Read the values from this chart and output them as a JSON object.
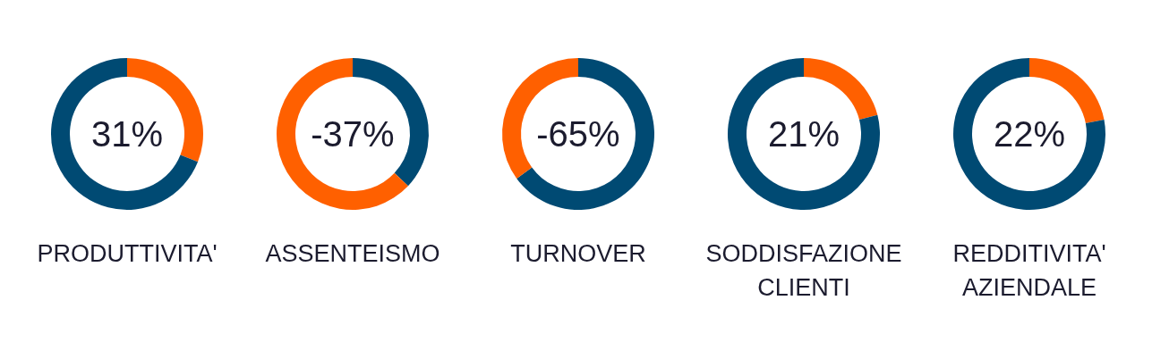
{
  "chart_data": [
    {
      "type": "donut",
      "title": "PRODUTTIVITA'",
      "categories": [
        null,
        null
      ],
      "values": [
        31,
        69
      ],
      "colors": [
        "#ff6000",
        "#004a73"
      ],
      "annotations": [
        "31%"
      ]
    },
    {
      "type": "donut",
      "title": "ASSENTEISMO",
      "categories": [
        null,
        null
      ],
      "values": [
        37,
        63
      ],
      "colors": [
        "#004a73",
        "#ff6000"
      ],
      "annotations": [
        "-37%"
      ]
    },
    {
      "type": "donut",
      "title": "TURNOVER",
      "categories": [
        null,
        null
      ],
      "values": [
        65,
        35
      ],
      "colors": [
        "#004a73",
        "#ff6000"
      ],
      "annotations": [
        "-65%"
      ]
    },
    {
      "type": "donut",
      "title": "SODDISFAZIONE CLIENTI",
      "categories": [
        null,
        null
      ],
      "values": [
        21,
        79
      ],
      "colors": [
        "#ff6000",
        "#004a73"
      ],
      "annotations": [
        "21%"
      ]
    },
    {
      "type": "donut",
      "title": "REDDITIVITA' AZIENDALE",
      "categories": [
        null,
        null
      ],
      "values": [
        22,
        78
      ],
      "colors": [
        "#ff6000",
        "#004a73"
      ],
      "annotations": [
        "22%"
      ]
    }
  ]
}
